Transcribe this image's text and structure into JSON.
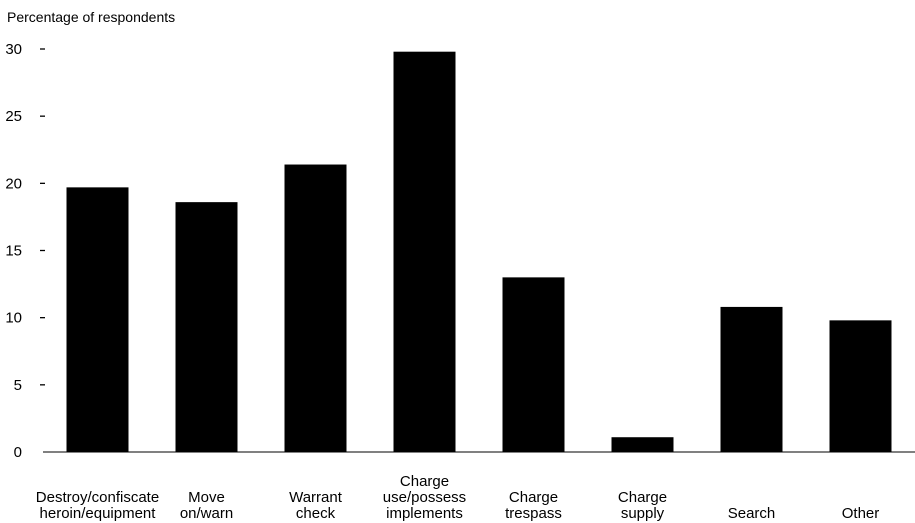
{
  "chart_data": {
    "type": "bar",
    "title": "",
    "ylabel": "Percentage of respondents",
    "xlabel": "",
    "ylim": [
      0,
      30
    ],
    "yticks": [
      0,
      5,
      10,
      15,
      20,
      25,
      30
    ],
    "grid": false,
    "bar_color": "#000000",
    "categories": [
      [
        "Destroy/confiscate",
        "heroin/equipment"
      ],
      [
        "Move",
        "on/warn"
      ],
      [
        "Warrant",
        "check"
      ],
      [
        "Charge",
        "use/possess",
        "implements"
      ],
      [
        "Charge",
        "trespass"
      ],
      [
        "Charge",
        "supply"
      ],
      [
        "Search"
      ],
      [
        "Other"
      ]
    ],
    "values": [
      19.7,
      18.6,
      21.4,
      29.8,
      13.0,
      1.1,
      10.8,
      9.8
    ]
  }
}
